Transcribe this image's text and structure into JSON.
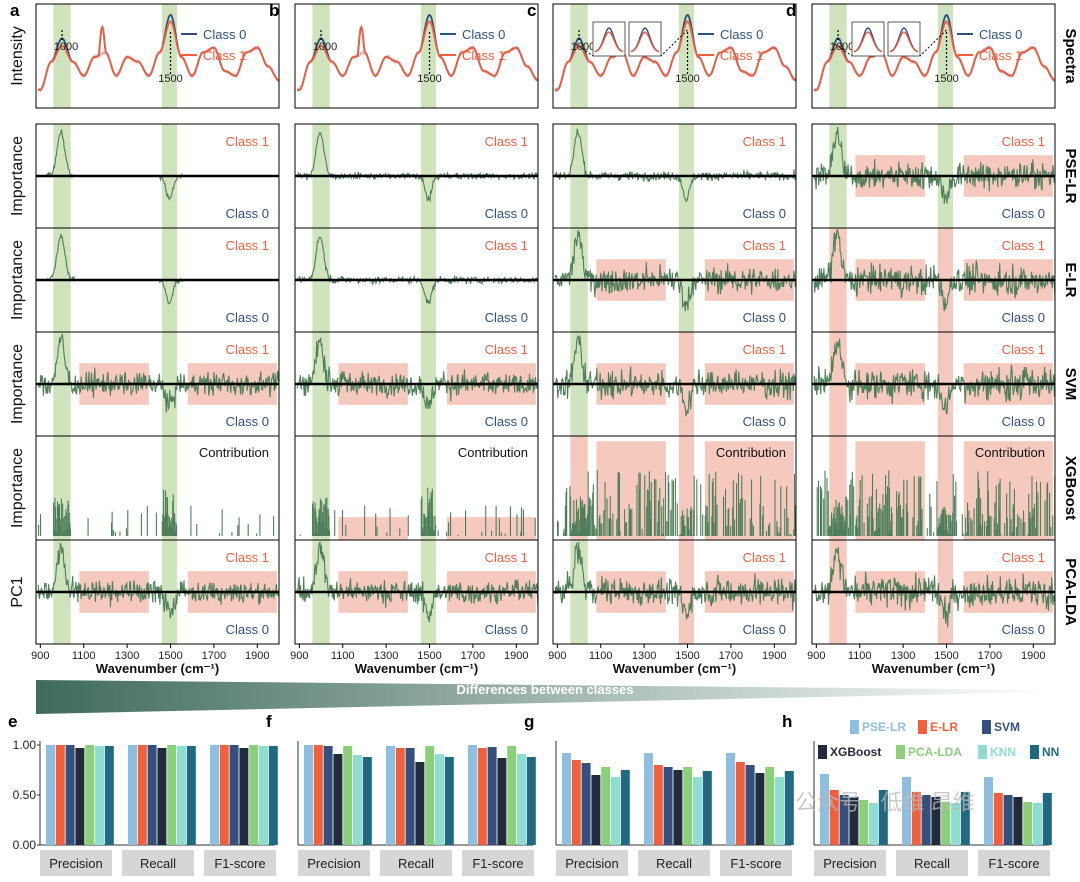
{
  "panels": [
    {
      "letter": "a",
      "model_index": 0
    },
    {
      "letter": "b",
      "model_index": 1
    },
    {
      "letter": "c",
      "model_index": 2
    },
    {
      "letter": "d",
      "model_index": 3
    }
  ],
  "metric_panels": [
    "e",
    "f",
    "g",
    "h"
  ],
  "row_labels": [
    "Spectra",
    "PSE-LR",
    "E-LR",
    "SVM",
    "XGBoost",
    "PCA-LDA"
  ],
  "y_labels": [
    "Intensity",
    "Importance",
    "Importance",
    "Importance",
    "Importance",
    "PC1"
  ],
  "spectra_legend": [
    "Class 0",
    "Class 1"
  ],
  "peak_labels": [
    "1000",
    "1500"
  ],
  "class_labels": {
    "pos": "Class 1",
    "neg": "Class 0",
    "xgb": "Contribution"
  },
  "x_axis_label": "Wavenumber (cm⁻¹)",
  "x_ticks": [
    "900",
    "1100",
    "1300",
    "1500",
    "1700",
    "1900"
  ],
  "gradient_label": "Differences between classes",
  "metrics": [
    "Precision",
    "Recall",
    "F1-score"
  ],
  "metric_y_ticks": [
    "0.00",
    "0.50",
    "1.00"
  ],
  "watermark": "公众号 · 低维 昂维",
  "colors": {
    "class0": "#2f4f80",
    "class1": "#ef5f3f",
    "green_band": "#c7deb0",
    "red_band": "#f4bcae",
    "importance_line": "#4f7f5a",
    "axis": "#000000",
    "grad_dark": "#3f6a5e",
    "grad_light": "#ffffff"
  },
  "chart_data": [
    {
      "type": "line",
      "panel": "spectra",
      "xlabel": "Wavenumber (cm⁻¹)",
      "xlim": [
        880,
        2000
      ],
      "series": [
        {
          "name": "Class 0",
          "x": [
            900,
            950,
            1000,
            1050,
            1100,
            1150,
            1200,
            1250,
            1300,
            1350,
            1400,
            1450,
            1500,
            1550,
            1600,
            1650,
            1700,
            1750,
            1800,
            1850,
            1900,
            1950,
            2000
          ],
          "values": [
            0.15,
            0.45,
            0.7,
            0.45,
            0.3,
            0.5,
            0.55,
            0.3,
            0.5,
            0.45,
            0.3,
            0.55,
            0.95,
            0.5,
            0.3,
            0.55,
            0.6,
            0.35,
            0.3,
            0.55,
            0.6,
            0.4,
            0.25
          ]
        },
        {
          "name": "Class 1",
          "x": [
            900,
            950,
            1000,
            1050,
            1100,
            1150,
            1200,
            1250,
            1300,
            1350,
            1400,
            1450,
            1500,
            1550,
            1600,
            1650,
            1700,
            1750,
            1800,
            1850,
            1900,
            1950,
            2000
          ],
          "values": [
            0.15,
            0.45,
            0.62,
            0.45,
            0.3,
            0.5,
            0.55,
            0.3,
            0.5,
            0.45,
            0.3,
            0.55,
            0.88,
            0.5,
            0.3,
            0.55,
            0.6,
            0.35,
            0.3,
            0.55,
            0.6,
            0.4,
            0.25
          ]
        }
      ],
      "annotations": [
        "1000",
        "1500"
      ]
    },
    {
      "type": "bar",
      "panel": "e",
      "categories": [
        "Precision",
        "Recall",
        "F1-score"
      ],
      "ylim": [
        0,
        1
      ],
      "series": [
        {
          "name": "PSE-LR",
          "color": "#8fbfe0",
          "values": [
            1.0,
            1.0,
            1.0
          ]
        },
        {
          "name": "E-LR",
          "color": "#f0603e",
          "values": [
            1.0,
            1.0,
            1.0
          ]
        },
        {
          "name": "SVM",
          "color": "#34507c",
          "values": [
            1.0,
            1.0,
            1.0
          ]
        },
        {
          "name": "XGBoost",
          "color": "#222a3d",
          "values": [
            0.97,
            0.97,
            0.97
          ]
        },
        {
          "name": "PCA-LDA",
          "color": "#8ccf7a",
          "values": [
            1.0,
            1.0,
            1.0
          ]
        },
        {
          "name": "KNN",
          "color": "#8fdcd0",
          "values": [
            0.99,
            0.99,
            0.99
          ]
        },
        {
          "name": "NN",
          "color": "#1f6a80",
          "values": [
            0.99,
            0.99,
            0.99
          ]
        }
      ]
    },
    {
      "type": "bar",
      "panel": "f",
      "categories": [
        "Precision",
        "Recall",
        "F1-score"
      ],
      "ylim": [
        0,
        1
      ],
      "series": [
        {
          "name": "PSE-LR",
          "color": "#8fbfe0",
          "values": [
            1.0,
            0.99,
            1.0
          ]
        },
        {
          "name": "E-LR",
          "color": "#f0603e",
          "values": [
            1.0,
            0.97,
            0.97
          ]
        },
        {
          "name": "SVM",
          "color": "#34507c",
          "values": [
            0.99,
            0.97,
            0.98
          ]
        },
        {
          "name": "XGBoost",
          "color": "#222a3d",
          "values": [
            0.91,
            0.83,
            0.87
          ]
        },
        {
          "name": "PCA-LDA",
          "color": "#8ccf7a",
          "values": [
            0.99,
            0.99,
            0.99
          ]
        },
        {
          "name": "KNN",
          "color": "#8fdcd0",
          "values": [
            0.9,
            0.91,
            0.91
          ]
        },
        {
          "name": "NN",
          "color": "#1f6a80",
          "values": [
            0.88,
            0.88,
            0.88
          ]
        }
      ]
    },
    {
      "type": "bar",
      "panel": "g",
      "categories": [
        "Precision",
        "Recall",
        "F1-score"
      ],
      "ylim": [
        0,
        1
      ],
      "series": [
        {
          "name": "PSE-LR",
          "color": "#8fbfe0",
          "values": [
            0.92,
            0.92,
            0.92
          ]
        },
        {
          "name": "E-LR",
          "color": "#f0603e",
          "values": [
            0.85,
            0.8,
            0.83
          ]
        },
        {
          "name": "SVM",
          "color": "#34507c",
          "values": [
            0.82,
            0.78,
            0.8
          ]
        },
        {
          "name": "XGBoost",
          "color": "#222a3d",
          "values": [
            0.7,
            0.75,
            0.72
          ]
        },
        {
          "name": "PCA-LDA",
          "color": "#8ccf7a",
          "values": [
            0.78,
            0.78,
            0.78
          ]
        },
        {
          "name": "KNN",
          "color": "#8fdcd0",
          "values": [
            0.68,
            0.68,
            0.68
          ]
        },
        {
          "name": "NN",
          "color": "#1f6a80",
          "values": [
            0.75,
            0.74,
            0.74
          ]
        }
      ]
    },
    {
      "type": "bar",
      "panel": "h",
      "categories": [
        "Precision",
        "Recall",
        "F1-score"
      ],
      "ylim": [
        0,
        1
      ],
      "series": [
        {
          "name": "PSE-LR",
          "color": "#8fbfe0",
          "values": [
            0.71,
            0.68,
            0.68
          ]
        },
        {
          "name": "E-LR",
          "color": "#f0603e",
          "values": [
            0.55,
            0.53,
            0.52
          ]
        },
        {
          "name": "SVM",
          "color": "#34507c",
          "values": [
            0.5,
            0.5,
            0.5
          ]
        },
        {
          "name": "XGBoost",
          "color": "#222a3d",
          "values": [
            0.48,
            0.48,
            0.48
          ]
        },
        {
          "name": "PCA-LDA",
          "color": "#8ccf7a",
          "values": [
            0.45,
            0.43,
            0.43
          ]
        },
        {
          "name": "KNN",
          "color": "#8fdcd0",
          "values": [
            0.42,
            0.42,
            0.42
          ]
        },
        {
          "name": "NN",
          "color": "#1f6a80",
          "values": [
            0.55,
            0.53,
            0.52
          ]
        }
      ]
    }
  ]
}
